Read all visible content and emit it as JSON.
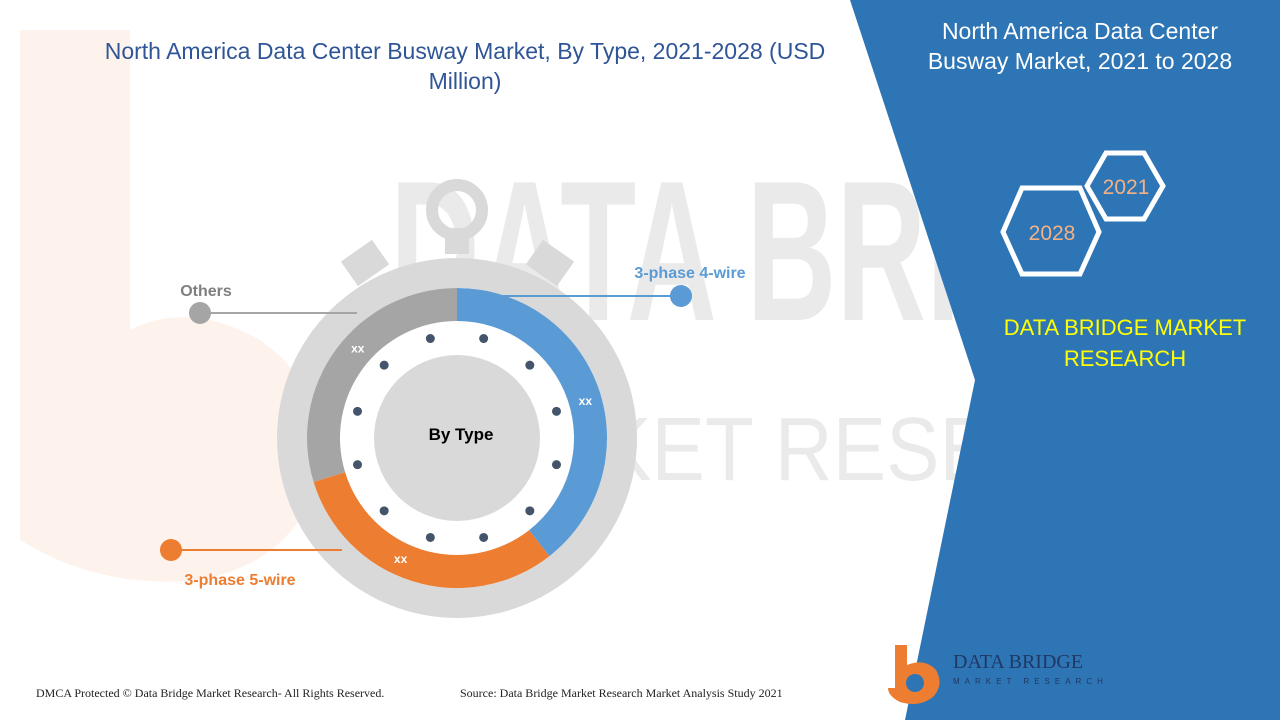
{
  "title": "North America Data Center Busway Market, By Type, 2021-2028 (USD Million)",
  "panel": {
    "title": "North America Data Center Busway Market, 2021 to 2028",
    "year_start": "2021",
    "year_end": "2028",
    "brand_name": "DATA BRIDGE MARKET RESEARCH",
    "logo_text": "DATA BRIDGE",
    "logo_subtext": "MARKET RESEARCH"
  },
  "watermark": {
    "line1": "DATA BRIDGE",
    "line2": "MARKET RESEARCH"
  },
  "colors": {
    "accent_blue": "#2e75b6",
    "segment_blue": "#5b9bd5",
    "segment_orange": "#ed7d31",
    "segment_gray": "#a5a5a5",
    "brand_yellow": "#ffff00"
  },
  "chart_data": {
    "type": "pie",
    "center_label": "By Type",
    "segments": [
      {
        "name": "3-phase 4-wire",
        "value_label": "xx",
        "color": "#5b9bd5"
      },
      {
        "name": "3-phase 5-wire",
        "value_label": "xx",
        "color": "#ed7d31"
      },
      {
        "name": "Others",
        "value_label": "xx",
        "color": "#a5a5a5"
      }
    ]
  },
  "footer": {
    "copyright": "DMCA Protected © Data Bridge Market Research- All Rights Reserved.",
    "source": "Source: Data Bridge Market Research Market Analysis Study 2021"
  }
}
